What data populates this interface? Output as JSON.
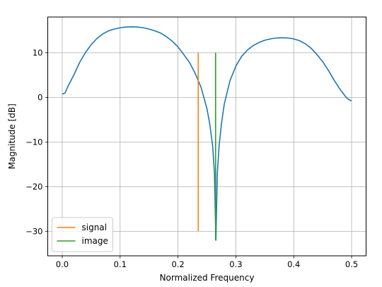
{
  "chart_data": {
    "type": "line",
    "xlabel": "Normalized Frequency",
    "ylabel": "Magnitude [dB]",
    "xlim": [
      -0.025,
      0.525
    ],
    "ylim": [
      -35.5,
      18.0
    ],
    "x_ticks": [
      0.0,
      0.1,
      0.2,
      0.3,
      0.4,
      0.5
    ],
    "x_tick_labels": [
      "0.0",
      "0.1",
      "0.2",
      "0.3",
      "0.4",
      "0.5"
    ],
    "y_ticks": [
      -30,
      -20,
      -10,
      0,
      10
    ],
    "y_tick_labels": [
      "−30",
      "−20",
      "−10",
      "0",
      "10"
    ],
    "grid": true,
    "legend_position": "lower-left",
    "series": [
      {
        "color": "#1f77b4",
        "x": [
          0.0,
          0.005,
          0.01,
          0.02,
          0.03,
          0.04,
          0.05,
          0.06,
          0.07,
          0.08,
          0.09,
          0.1,
          0.11,
          0.12,
          0.13,
          0.14,
          0.15,
          0.16,
          0.17,
          0.18,
          0.19,
          0.2,
          0.21,
          0.22,
          0.23,
          0.24,
          0.25,
          0.255,
          0.26,
          0.263,
          0.2655,
          0.268,
          0.271,
          0.275,
          0.28,
          0.29,
          0.3,
          0.31,
          0.32,
          0.33,
          0.34,
          0.35,
          0.36,
          0.37,
          0.38,
          0.39,
          0.4,
          0.41,
          0.42,
          0.43,
          0.44,
          0.45,
          0.46,
          0.47,
          0.48,
          0.49,
          0.495,
          0.5
        ],
        "y": [
          0.7,
          1.0,
          2.5,
          5.0,
          7.8,
          10.0,
          11.8,
          13.2,
          14.2,
          14.9,
          15.3,
          15.6,
          15.75,
          15.8,
          15.75,
          15.6,
          15.3,
          14.9,
          14.4,
          13.6,
          12.6,
          11.3,
          9.6,
          7.8,
          5.3,
          2.2,
          -2.5,
          -6.0,
          -11.0,
          -17.0,
          -32.0,
          -17.0,
          -11.0,
          -6.0,
          -1.5,
          3.8,
          7.0,
          9.2,
          10.6,
          11.6,
          12.3,
          12.8,
          13.1,
          13.3,
          13.35,
          13.3,
          13.1,
          12.7,
          12.0,
          11.0,
          9.6,
          8.0,
          6.0,
          3.8,
          1.8,
          0.1,
          -0.5,
          -0.8
        ]
      },
      {
        "name": "signal",
        "color": "#ff7f0e",
        "x": [
          0.235,
          0.235
        ],
        "y": [
          -30,
          10
        ]
      },
      {
        "name": "image",
        "color": "#2ca02c",
        "x": [
          0.265,
          0.265
        ],
        "y": [
          -32,
          10
        ]
      }
    ]
  }
}
